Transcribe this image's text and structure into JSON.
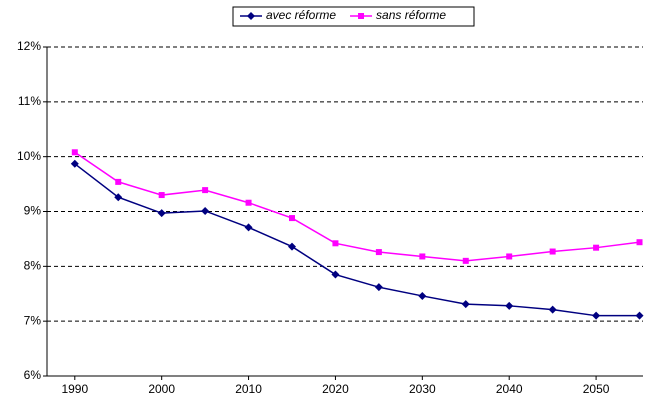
{
  "chart_data": {
    "type": "line",
    "x": [
      1990,
      1995,
      2000,
      2005,
      2010,
      2015,
      2020,
      2025,
      2030,
      2035,
      2040,
      2045,
      2050,
      2055
    ],
    "series": [
      {
        "name": "avec réforme",
        "color": "#000080",
        "marker": "diamond",
        "values": [
          9.87,
          9.26,
          8.97,
          9.01,
          8.71,
          8.36,
          7.85,
          7.62,
          7.46,
          7.31,
          7.28,
          7.21,
          7.1,
          7.1
        ]
      },
      {
        "name": "sans réforme",
        "color": "#ff00ff",
        "marker": "square",
        "values": [
          10.08,
          9.54,
          9.3,
          9.39,
          9.16,
          8.88,
          8.42,
          8.26,
          8.18,
          8.1,
          8.18,
          8.27,
          8.34,
          8.44
        ]
      }
    ],
    "xlim": [
      1986.8,
      2055.4
    ],
    "xticks": [
      1990,
      2000,
      2010,
      2020,
      2030,
      2040,
      2050
    ],
    "ylim": [
      6,
      12
    ],
    "yticks": [
      {
        "value": 6,
        "label": "6%"
      },
      {
        "value": 7,
        "label": "7%"
      },
      {
        "value": 8,
        "label": "8%"
      },
      {
        "value": 9,
        "label": "9%"
      },
      {
        "value": 10,
        "label": "10%"
      },
      {
        "value": 11,
        "label": "11%"
      },
      {
        "value": 12,
        "label": "12%"
      }
    ],
    "grid": true,
    "legend": "top"
  }
}
